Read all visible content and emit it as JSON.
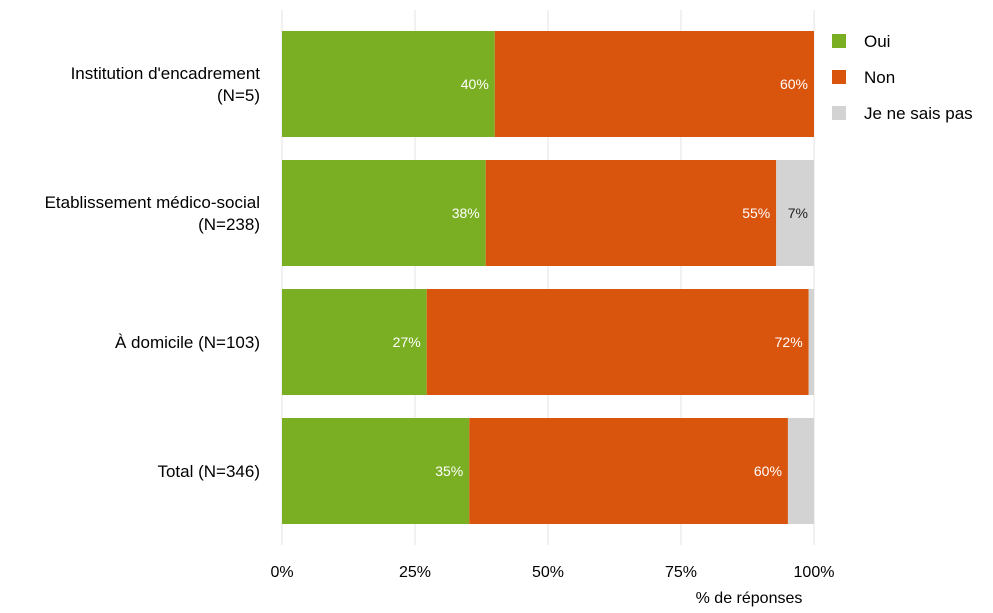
{
  "chart_data": {
    "type": "bar",
    "orientation": "horizontal",
    "stacked": true,
    "categories": [
      "Institution d'encadrement\n(N=5)",
      "Etablissement médico-social\n(N=238)",
      "À domicile (N=103)",
      "Total (N=346)"
    ],
    "series": [
      {
        "name": "Oui",
        "color": "#7AAF23",
        "values": [
          40,
          38.3,
          27.2,
          35.2
        ],
        "labels": [
          "40%",
          "38%",
          "27%",
          "35%"
        ]
      },
      {
        "name": "Non",
        "color": "#D9540C",
        "values": [
          60,
          54.6,
          71.8,
          59.9
        ],
        "labels": [
          "60%",
          "55%",
          "72%",
          "60%"
        ]
      },
      {
        "name": "Je ne sais pas",
        "color": "#D3D3D3",
        "values": [
          0,
          7.1,
          1.0,
          4.9
        ],
        "labels": [
          "",
          "7%",
          "",
          ""
        ]
      }
    ],
    "xlabel": "% de réponses",
    "ylabel": "",
    "xlim": [
      0,
      100
    ],
    "xticks": [
      0,
      25,
      50,
      75,
      100
    ],
    "xtick_labels": [
      "0%",
      "25%",
      "50%",
      "75%",
      "100%"
    ],
    "grid": "vertical",
    "legend_position": "top-right"
  }
}
